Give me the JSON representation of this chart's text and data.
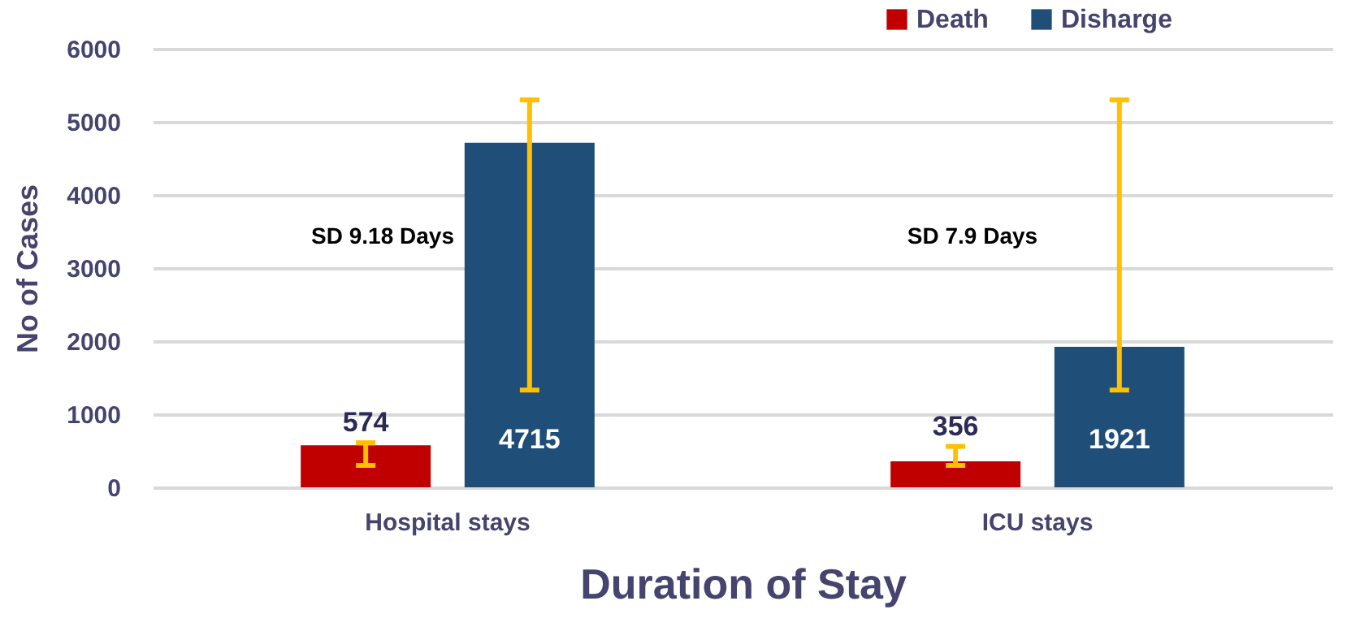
{
  "chart_data": {
    "type": "bar",
    "categories": [
      "Hospital stays",
      "ICU stays"
    ],
    "series": [
      {
        "name": "Death",
        "color": "#c00000",
        "values": [
          574,
          356
        ],
        "errors": [
          [
            300,
            610
          ],
          [
            300,
            560
          ]
        ]
      },
      {
        "name": "Disharge",
        "color": "#1f4e79",
        "values": [
          4715,
          1921
        ],
        "errors": [
          [
            1330,
            5300
          ],
          [
            1330,
            5300
          ]
        ]
      }
    ],
    "xlabel": "Duration of Stay",
    "ylabel": "No of Cases",
    "ylim": [
      0,
      6000
    ],
    "yticks": [
      0,
      1000,
      2000,
      3000,
      4000,
      5000,
      6000
    ],
    "annotations": [
      "SD 9.18 Days",
      "SD 7.9 Days"
    ],
    "data_labels": true,
    "grid": "y",
    "legend": "top right"
  }
}
